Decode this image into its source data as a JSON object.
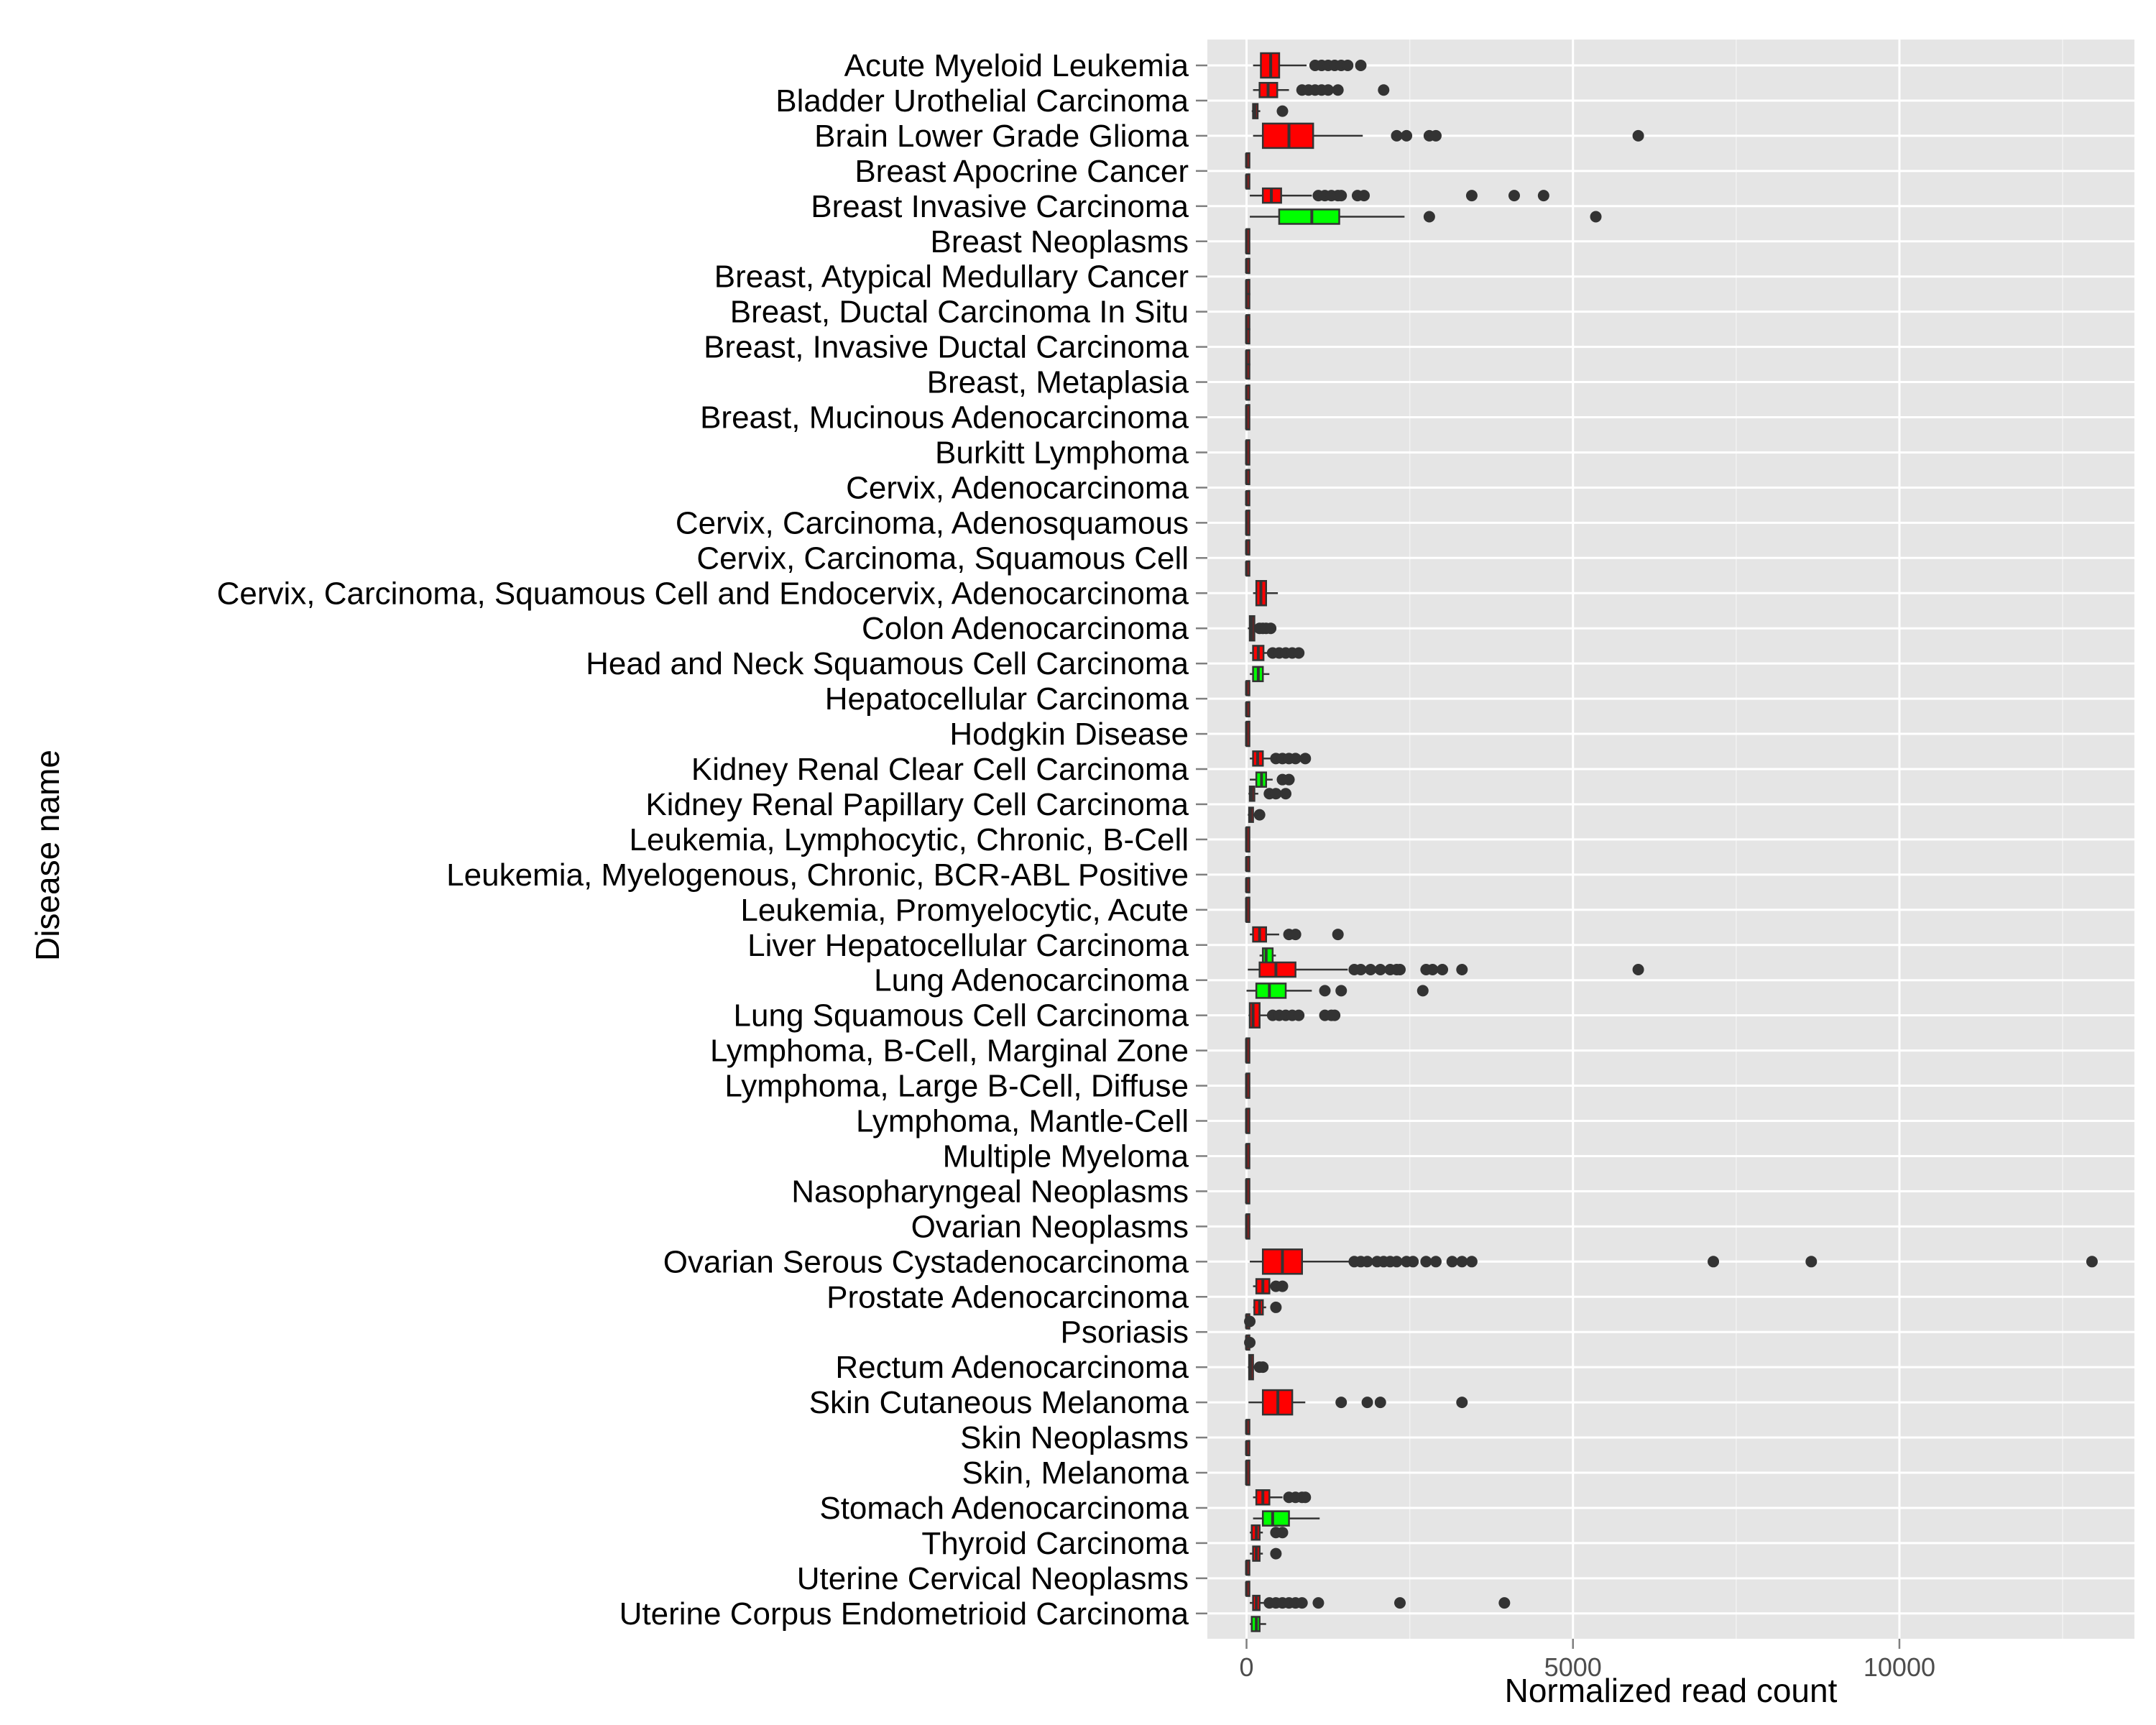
{
  "chart_data": {
    "type": "boxplot",
    "orientation": "horizontal",
    "xlabel": "Normalized read count",
    "ylabel": "Disease name",
    "xlim": [
      -600,
      13600
    ],
    "xticks": [
      0,
      5000,
      10000
    ],
    "xtick_labels": [
      "0",
      "5000",
      "10000"
    ],
    "grid": true,
    "legend": "none",
    "colors": {
      "panel": "#e5e5e5",
      "grid": "#ffffff",
      "tick": "#7f7f7f",
      "box_outline": "#333333",
      "outlier": "#333333"
    },
    "series_colors": [
      "#ff0000",
      "#00ff00"
    ],
    "categories": [
      "Acute Myeloid Leukemia",
      "Bladder Urothelial Carcinoma",
      "Brain Lower Grade Glioma",
      "Breast Apocrine Cancer",
      "Breast Invasive Carcinoma",
      "Breast Neoplasms",
      "Breast, Atypical Medullary Cancer",
      "Breast, Ductal Carcinoma In Situ",
      "Breast, Invasive Ductal Carcinoma",
      "Breast, Metaplasia",
      "Breast, Mucinous Adenocarcinoma",
      "Burkitt Lymphoma",
      "Cervix, Adenocarcinoma",
      "Cervix, Carcinoma, Adenosquamous",
      "Cervix, Carcinoma, Squamous Cell",
      "Cervix, Carcinoma, Squamous Cell and Endocervix, Adenocarcinoma",
      "Colon Adenocarcinoma",
      "Head and Neck Squamous Cell Carcinoma",
      "Hepatocellular Carcinoma",
      "Hodgkin Disease",
      "Kidney Renal Clear Cell Carcinoma",
      "Kidney Renal Papillary Cell Carcinoma",
      "Leukemia, Lymphocytic, Chronic, B-Cell",
      "Leukemia, Myelogenous, Chronic, BCR-ABL Positive",
      "Leukemia, Promyelocytic, Acute",
      "Liver Hepatocellular Carcinoma",
      "Lung Adenocarcinoma",
      "Lung Squamous Cell Carcinoma",
      "Lymphoma, B-Cell, Marginal Zone",
      "Lymphoma, Large B-Cell, Diffuse",
      "Lymphoma, Mantle-Cell",
      "Multiple Myeloma",
      "Nasopharyngeal Neoplasms",
      "Ovarian Neoplasms",
      "Ovarian Serous Cystadenocarcinoma",
      "Prostate Adenocarcinoma",
      "Psoriasis",
      "Rectum Adenocarcinoma",
      "Skin Cutaneous Melanoma",
      "Skin Neoplasms",
      "Skin, Melanoma",
      "Stomach Adenocarcinoma",
      "Thyroid Carcinoma",
      "Uterine Cervical Neoplasms",
      "Uterine Corpus Endometrioid Carcinoma"
    ],
    "boxes": [
      {
        "category": 0,
        "series": 0,
        "offset": 0,
        "min": 100,
        "q1": 220,
        "median": 370,
        "q3": 500,
        "max": 920,
        "outliers": [
          1050,
          1150,
          1250,
          1350,
          1450,
          1550,
          1750
        ]
      },
      {
        "category": 1,
        "series": 0,
        "offset": -0.3,
        "min": 100,
        "q1": 200,
        "median": 330,
        "q3": 470,
        "max": 650,
        "outliers": [
          850,
          950,
          1050,
          1150,
          1250,
          1400,
          2100
        ]
      },
      {
        "category": 1,
        "series": 0,
        "offset": 0.3,
        "min": 80,
        "q1": 100,
        "median": 130,
        "q3": 170,
        "max": 210,
        "outliers": [
          550
        ]
      },
      {
        "category": 2,
        "series": 0,
        "offset": 0,
        "min": 100,
        "q1": 250,
        "median": 650,
        "q3": 1020,
        "max": 1780,
        "outliers": [
          2300,
          2450,
          2800,
          2900,
          6000
        ]
      },
      {
        "category": 3,
        "series": 0,
        "offset": -0.3,
        "min": 0,
        "q1": 0,
        "median": 0,
        "q3": 0,
        "max": 0,
        "outliers": []
      },
      {
        "category": 3,
        "series": 0,
        "offset": 0.3,
        "min": 0,
        "q1": 0,
        "median": 0,
        "q3": 0,
        "max": 0,
        "outliers": []
      },
      {
        "category": 4,
        "series": 0,
        "offset": -0.3,
        "min": 50,
        "q1": 250,
        "median": 380,
        "q3": 530,
        "max": 1000,
        "outliers": [
          1100,
          1200,
          1300,
          1400,
          1450,
          1700,
          1800,
          3450,
          4100,
          4550
        ]
      },
      {
        "category": 4,
        "series": 1,
        "offset": 0.3,
        "min": 50,
        "q1": 500,
        "median": 1000,
        "q3": 1420,
        "max": 2420,
        "outliers": [
          2800,
          5350
        ]
      },
      {
        "category": 5,
        "series": 0,
        "offset": 0,
        "min": 0,
        "q1": 0,
        "median": 0,
        "q3": 0,
        "max": 0,
        "outliers": []
      },
      {
        "category": 6,
        "series": 0,
        "offset": -0.3,
        "min": 0,
        "q1": 0,
        "median": 0,
        "q3": 0,
        "max": 0,
        "outliers": []
      },
      {
        "category": 6,
        "series": 0,
        "offset": 0.3,
        "min": 0,
        "q1": 0,
        "median": 0,
        "q3": 0,
        "max": 0,
        "outliers": []
      },
      {
        "category": 7,
        "series": 0,
        "offset": -0.3,
        "min": 0,
        "q1": 0,
        "median": 0,
        "q3": 0,
        "max": 0,
        "outliers": []
      },
      {
        "category": 7,
        "series": 0,
        "offset": 0.3,
        "min": 0,
        "q1": 0,
        "median": 0,
        "q3": 0,
        "max": 0,
        "outliers": []
      },
      {
        "category": 8,
        "series": 0,
        "offset": -0.3,
        "min": 0,
        "q1": 0,
        "median": 0,
        "q3": 0,
        "max": 0,
        "outliers": []
      },
      {
        "category": 8,
        "series": 0,
        "offset": 0.3,
        "min": 0,
        "q1": 0,
        "median": 0,
        "q3": 0,
        "max": 0,
        "outliers": []
      },
      {
        "category": 9,
        "series": 0,
        "offset": -0.3,
        "min": 0,
        "q1": 0,
        "median": 0,
        "q3": 0,
        "max": 0,
        "outliers": []
      },
      {
        "category": 9,
        "series": 0,
        "offset": 0.3,
        "min": 0,
        "q1": 0,
        "median": 0,
        "q3": 0,
        "max": 0,
        "outliers": []
      },
      {
        "category": 10,
        "series": 0,
        "offset": 0,
        "min": 0,
        "q1": 0,
        "median": 0,
        "q3": 0,
        "max": 0,
        "outliers": []
      },
      {
        "category": 11,
        "series": 0,
        "offset": 0,
        "min": 0,
        "q1": 0,
        "median": 0,
        "q3": 0,
        "max": 0,
        "outliers": []
      },
      {
        "category": 12,
        "series": 0,
        "offset": -0.3,
        "min": 0,
        "q1": 0,
        "median": 0,
        "q3": 0,
        "max": 0,
        "outliers": []
      },
      {
        "category": 12,
        "series": 0,
        "offset": 0.3,
        "min": 0,
        "q1": 0,
        "median": 0,
        "q3": 0,
        "max": 0,
        "outliers": []
      },
      {
        "category": 13,
        "series": 0,
        "offset": 0,
        "min": 0,
        "q1": 0,
        "median": 0,
        "q3": 0,
        "max": 0,
        "outliers": []
      },
      {
        "category": 14,
        "series": 0,
        "offset": -0.3,
        "min": 0,
        "q1": 0,
        "median": 0,
        "q3": 0,
        "max": 0,
        "outliers": []
      },
      {
        "category": 14,
        "series": 0,
        "offset": 0.3,
        "min": 0,
        "q1": 0,
        "median": 0,
        "q3": 0,
        "max": 0,
        "outliers": []
      },
      {
        "category": 15,
        "series": 0,
        "offset": 0,
        "min": 100,
        "q1": 150,
        "median": 220,
        "q3": 300,
        "max": 480,
        "outliers": []
      },
      {
        "category": 16,
        "series": 0,
        "offset": 0,
        "min": 20,
        "q1": 50,
        "median": 80,
        "q3": 120,
        "max": 150,
        "outliers": [
          200,
          250,
          300,
          370
        ]
      },
      {
        "category": 17,
        "series": 0,
        "offset": -0.3,
        "min": 50,
        "q1": 100,
        "median": 180,
        "q3": 260,
        "max": 330,
        "outliers": [
          400,
          500,
          600,
          700,
          800
        ]
      },
      {
        "category": 17,
        "series": 1,
        "offset": 0.3,
        "min": 50,
        "q1": 100,
        "median": 180,
        "q3": 250,
        "max": 350,
        "outliers": []
      },
      {
        "category": 18,
        "series": 0,
        "offset": -0.3,
        "min": 0,
        "q1": 0,
        "median": 0,
        "q3": 0,
        "max": 0,
        "outliers": []
      },
      {
        "category": 18,
        "series": 0,
        "offset": 0.3,
        "min": 0,
        "q1": 0,
        "median": 0,
        "q3": 0,
        "max": 0,
        "outliers": []
      },
      {
        "category": 19,
        "series": 0,
        "offset": 0,
        "min": 0,
        "q1": 0,
        "median": 0,
        "q3": 0,
        "max": 0,
        "outliers": []
      },
      {
        "category": 20,
        "series": 0,
        "offset": -0.3,
        "min": 50,
        "q1": 100,
        "median": 170,
        "q3": 250,
        "max": 400,
        "outliers": [
          450,
          550,
          650,
          750,
          900
        ]
      },
      {
        "category": 20,
        "series": 1,
        "offset": 0.3,
        "min": 50,
        "q1": 150,
        "median": 230,
        "q3": 300,
        "max": 400,
        "outliers": [
          550,
          650
        ]
      },
      {
        "category": 21,
        "series": 0,
        "offset": -0.3,
        "min": 30,
        "q1": 50,
        "median": 80,
        "q3": 120,
        "max": 180,
        "outliers": [
          350,
          450,
          600
        ]
      },
      {
        "category": 21,
        "series": 0,
        "offset": 0.3,
        "min": 20,
        "q1": 40,
        "median": 60,
        "q3": 100,
        "max": 150,
        "outliers": [
          200
        ]
      },
      {
        "category": 22,
        "series": 0,
        "offset": 0,
        "min": 0,
        "q1": 0,
        "median": 0,
        "q3": 0,
        "max": 0,
        "outliers": []
      },
      {
        "category": 23,
        "series": 0,
        "offset": -0.3,
        "min": 0,
        "q1": 0,
        "median": 0,
        "q3": 0,
        "max": 0,
        "outliers": []
      },
      {
        "category": 23,
        "series": 0,
        "offset": 0.3,
        "min": 0,
        "q1": 0,
        "median": 0,
        "q3": 0,
        "max": 0,
        "outliers": []
      },
      {
        "category": 24,
        "series": 0,
        "offset": 0,
        "min": 0,
        "q1": 0,
        "median": 0,
        "q3": 0,
        "max": 0,
        "outliers": []
      },
      {
        "category": 25,
        "series": 0,
        "offset": -0.3,
        "min": 50,
        "q1": 100,
        "median": 200,
        "q3": 300,
        "max": 500,
        "outliers": [
          650,
          750,
          1400
        ]
      },
      {
        "category": 25,
        "series": 1,
        "offset": 0.3,
        "min": 200,
        "q1": 250,
        "median": 300,
        "q3": 400,
        "max": 450,
        "outliers": []
      },
      {
        "category": 26,
        "series": 0,
        "offset": -0.3,
        "min": 20,
        "q1": 200,
        "median": 450,
        "q3": 750,
        "max": 1550,
        "outliers": [
          1650,
          1750,
          1900,
          2050,
          2200,
          2300,
          2350,
          2750,
          2850,
          3000,
          3300,
          6000
        ]
      },
      {
        "category": 26,
        "series": 1,
        "offset": 0.3,
        "min": 0,
        "q1": 150,
        "median": 350,
        "q3": 600,
        "max": 1000,
        "outliers": [
          1200,
          1450,
          2700
        ]
      },
      {
        "category": 27,
        "series": 0,
        "offset": 0,
        "min": 30,
        "q1": 50,
        "median": 100,
        "q3": 200,
        "max": 330,
        "outliers": [
          400,
          500,
          600,
          700,
          800,
          1200,
          1300,
          1350
        ]
      },
      {
        "category": 28,
        "series": 0,
        "offset": 0,
        "min": 0,
        "q1": 0,
        "median": 0,
        "q3": 0,
        "max": 0,
        "outliers": []
      },
      {
        "category": 29,
        "series": 0,
        "offset": 0,
        "min": 0,
        "q1": 0,
        "median": 0,
        "q3": 0,
        "max": 0,
        "outliers": []
      },
      {
        "category": 30,
        "series": 0,
        "offset": 0,
        "min": 0,
        "q1": 0,
        "median": 0,
        "q3": 0,
        "max": 0,
        "outliers": []
      },
      {
        "category": 31,
        "series": 0,
        "offset": 0,
        "min": 0,
        "q1": 0,
        "median": 0,
        "q3": 0,
        "max": 0,
        "outliers": []
      },
      {
        "category": 32,
        "series": 0,
        "offset": 0,
        "min": 0,
        "q1": 0,
        "median": 0,
        "q3": 0,
        "max": 0,
        "outliers": []
      },
      {
        "category": 33,
        "series": 0,
        "offset": 0,
        "min": 0,
        "q1": 0,
        "median": 0,
        "q3": 0,
        "max": 0,
        "outliers": []
      },
      {
        "category": 34,
        "series": 0,
        "offset": 0,
        "min": 50,
        "q1": 250,
        "median": 550,
        "q3": 850,
        "max": 1600,
        "outliers": [
          1650,
          1750,
          1850,
          2000,
          2100,
          2200,
          2300,
          2450,
          2550,
          2750,
          2900,
          3150,
          3300,
          3450,
          7150,
          8650,
          12950
        ]
      },
      {
        "category": 35,
        "series": 0,
        "offset": -0.3,
        "min": 100,
        "q1": 150,
        "median": 250,
        "q3": 350,
        "max": 400,
        "outliers": [
          450,
          550
        ]
      },
      {
        "category": 35,
        "series": 0,
        "offset": 0.3,
        "min": 100,
        "q1": 120,
        "median": 200,
        "q3": 250,
        "max": 300,
        "outliers": [
          450
        ]
      },
      {
        "category": 36,
        "series": 0,
        "offset": -0.3,
        "min": 0,
        "q1": 0,
        "median": 0,
        "q3": 0,
        "max": 0,
        "outliers": [
          50
        ]
      },
      {
        "category": 36,
        "series": 0,
        "offset": 0.3,
        "min": 0,
        "q1": 0,
        "median": 0,
        "q3": 0,
        "max": 0,
        "outliers": [
          50
        ]
      },
      {
        "category": 37,
        "series": 0,
        "offset": 0,
        "min": 20,
        "q1": 40,
        "median": 60,
        "q3": 100,
        "max": 150,
        "outliers": [
          200,
          250
        ]
      },
      {
        "category": 38,
        "series": 0,
        "offset": 0,
        "min": 30,
        "q1": 250,
        "median": 480,
        "q3": 700,
        "max": 900,
        "outliers": [
          1450,
          1850,
          2050,
          3300
        ]
      },
      {
        "category": 39,
        "series": 0,
        "offset": -0.3,
        "min": 0,
        "q1": 0,
        "median": 0,
        "q3": 0,
        "max": 0,
        "outliers": []
      },
      {
        "category": 39,
        "series": 0,
        "offset": 0.3,
        "min": 0,
        "q1": 0,
        "median": 0,
        "q3": 0,
        "max": 0,
        "outliers": []
      },
      {
        "category": 40,
        "series": 0,
        "offset": 0,
        "min": 0,
        "q1": 0,
        "median": 0,
        "q3": 0,
        "max": 0,
        "outliers": []
      },
      {
        "category": 41,
        "series": 0,
        "offset": -0.3,
        "min": 100,
        "q1": 150,
        "median": 250,
        "q3": 350,
        "max": 550,
        "outliers": [
          650,
          750,
          850,
          900
        ]
      },
      {
        "category": 41,
        "series": 1,
        "offset": 0.3,
        "min": 100,
        "q1": 250,
        "median": 400,
        "q3": 650,
        "max": 1120,
        "outliers": []
      },
      {
        "category": 42,
        "series": 0,
        "offset": -0.3,
        "min": 50,
        "q1": 80,
        "median": 150,
        "q3": 200,
        "max": 250,
        "outliers": [
          450,
          550
        ]
      },
      {
        "category": 42,
        "series": 0,
        "offset": 0.3,
        "min": 50,
        "q1": 100,
        "median": 150,
        "q3": 200,
        "max": 250,
        "outliers": [
          450
        ]
      },
      {
        "category": 43,
        "series": 0,
        "offset": -0.3,
        "min": 0,
        "q1": 0,
        "median": 0,
        "q3": 0,
        "max": 0,
        "outliers": []
      },
      {
        "category": 43,
        "series": 0,
        "offset": 0.3,
        "min": 0,
        "q1": 0,
        "median": 0,
        "q3": 0,
        "max": 0,
        "outliers": []
      },
      {
        "category": 44,
        "series": 0,
        "offset": -0.3,
        "min": 50,
        "q1": 100,
        "median": 150,
        "q3": 200,
        "max": 300,
        "outliers": [
          350,
          450,
          550,
          650,
          750,
          850,
          1100,
          2350,
          3950
        ]
      },
      {
        "category": 44,
        "series": 1,
        "offset": 0.3,
        "min": 50,
        "q1": 80,
        "median": 150,
        "q3": 200,
        "max": 300,
        "outliers": []
      }
    ]
  }
}
